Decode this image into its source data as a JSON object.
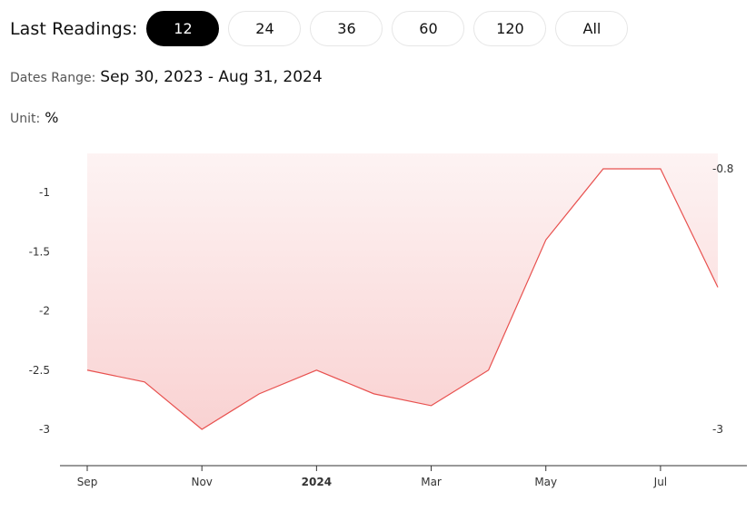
{
  "header": {
    "label": "Last Readings:",
    "options": [
      "12",
      "24",
      "36",
      "60",
      "120",
      "All"
    ],
    "selected": "12"
  },
  "dates": {
    "label": "Dates Range:",
    "value": "Sep 30, 2023 - Aug 31, 2024"
  },
  "unit": {
    "label": "Unit:",
    "value": "%"
  },
  "colors": {
    "line": "#e8514f",
    "fill_top": "#fdf3f3",
    "fill_bottom": "#f9d2d2",
    "active_pill": "#000000"
  },
  "chart_data": {
    "type": "area",
    "x": [
      "2023-09-30",
      "2023-10-31",
      "2023-11-30",
      "2023-12-31",
      "2024-01-31",
      "2024-02-29",
      "2024-03-31",
      "2024-04-30",
      "2024-05-31",
      "2024-06-30",
      "2024-07-31",
      "2024-08-31"
    ],
    "values": [
      -2.5,
      -2.6,
      -3.0,
      -2.7,
      -2.5,
      -2.7,
      -2.8,
      -2.5,
      -1.4,
      -0.8,
      -0.8,
      -1.8
    ],
    "ylim": [
      -3,
      -0.8
    ],
    "yticks": [
      "-1",
      "-1.5",
      "-2",
      "-2.5",
      "-3"
    ],
    "right_labels": [
      "-0.8",
      "-3"
    ],
    "xticks": [
      "Sep",
      "Nov",
      "2024",
      "Mar",
      "May",
      "Jul"
    ],
    "grid": false
  }
}
